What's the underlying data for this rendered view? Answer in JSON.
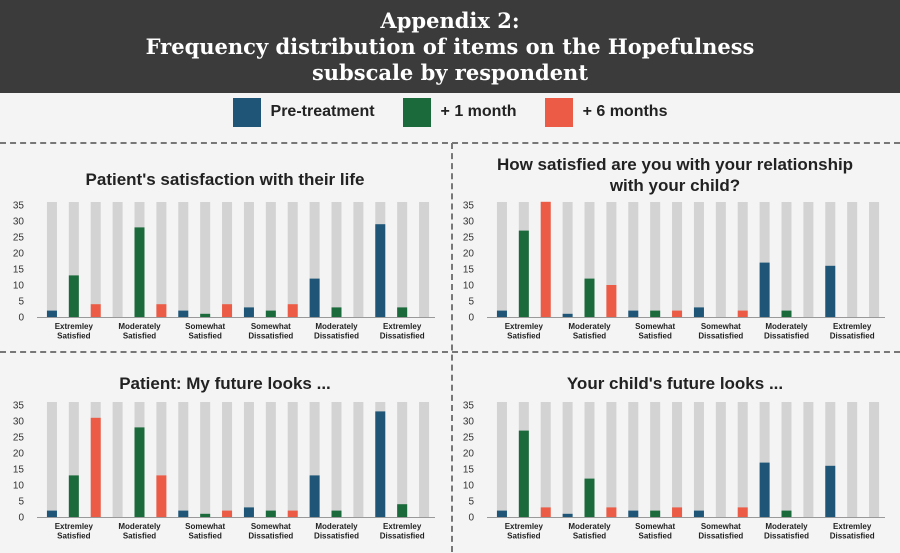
{
  "header": {
    "line1": "Appendix 2:",
    "line2": "Frequency distribution of items on the Hopefulness",
    "line3": "subscale by respondent"
  },
  "legend": [
    {
      "label": "Pre-treatment",
      "color": "#1f5677"
    },
    {
      "label": "+ 1 month",
      "color": "#1a6a3c"
    },
    {
      "label": "+ 6 months",
      "color": "#ec5b45"
    }
  ],
  "chart_data": [
    {
      "type": "bar",
      "title": "Patient's satisfaction with their life",
      "categories": [
        "Extremley Satisfied",
        "Moderately Satisfied",
        "Somewhat Satisfied",
        "Somewhat Dissatisfied",
        "Moderately Dissatisfied",
        "Extremley Dissatisfied"
      ],
      "series": [
        {
          "name": "Pre-treatment",
          "values": [
            2,
            0,
            2,
            3,
            12,
            29
          ]
        },
        {
          "name": "+ 1 month",
          "values": [
            13,
            28,
            1,
            2,
            3,
            3
          ]
        },
        {
          "name": "+ 6 months",
          "values": [
            4,
            4,
            4,
            4,
            0,
            0
          ]
        }
      ],
      "yticks": [
        0,
        5,
        10,
        15,
        20,
        25,
        30,
        35
      ],
      "ylim": [
        0,
        35
      ]
    },
    {
      "type": "bar",
      "title": "How satisfied are you with your relationship with your child?",
      "title_lines": [
        "How satisfied are you with your relationship",
        "with your child?"
      ],
      "categories": [
        "Extremley Satisfied",
        "Moderately Satisfied",
        "Somewhat Satisfied",
        "Somewhat Dissatisfied",
        "Moderately Dissatisfied",
        "Extremley Dissatisfied"
      ],
      "series": [
        {
          "name": "Pre-treatment",
          "values": [
            2,
            1,
            2,
            3,
            17,
            16
          ]
        },
        {
          "name": "+ 1 month",
          "values": [
            27,
            12,
            2,
            0,
            2,
            0
          ]
        },
        {
          "name": "+ 6 months",
          "values": [
            36,
            10,
            2,
            2,
            0,
            0
          ]
        }
      ],
      "yticks": [
        0,
        5,
        10,
        15,
        20,
        25,
        30,
        35
      ],
      "ylim": [
        0,
        35
      ]
    },
    {
      "type": "bar",
      "title": "Patient: My future looks ...",
      "categories": [
        "Extremley Satisfied",
        "Moderately Satisfied",
        "Somewhat Satisfied",
        "Somewhat Dissatisfied",
        "Moderately Dissatisfied",
        "Extremley Dissatisfied"
      ],
      "series": [
        {
          "name": "Pre-treatment",
          "values": [
            2,
            0,
            2,
            3,
            13,
            33
          ]
        },
        {
          "name": "+ 1 month",
          "values": [
            13,
            28,
            1,
            2,
            2,
            4
          ]
        },
        {
          "name": "+ 6 months",
          "values": [
            31,
            13,
            2,
            2,
            0,
            0
          ]
        }
      ],
      "yticks": [
        0,
        5,
        10,
        15,
        20,
        25,
        30,
        35
      ],
      "ylim": [
        0,
        35
      ]
    },
    {
      "type": "bar",
      "title": "Your child's future looks ...",
      "categories": [
        "Extremley Satisfied",
        "Moderately Satisfied",
        "Somewhat Satisfied",
        "Somewhat Dissatisfied",
        "Moderately Dissatisfied",
        "Extremley Dissatisfied"
      ],
      "series": [
        {
          "name": "Pre-treatment",
          "values": [
            2,
            1,
            2,
            2,
            17,
            16
          ]
        },
        {
          "name": "+ 1 month",
          "values": [
            27,
            12,
            2,
            0,
            2,
            0
          ]
        },
        {
          "name": "+ 6 months",
          "values": [
            3,
            3,
            3,
            3,
            0,
            0
          ]
        }
      ],
      "yticks": [
        0,
        5,
        10,
        15,
        20,
        25,
        30,
        35
      ],
      "ylim": [
        0,
        35
      ]
    }
  ]
}
